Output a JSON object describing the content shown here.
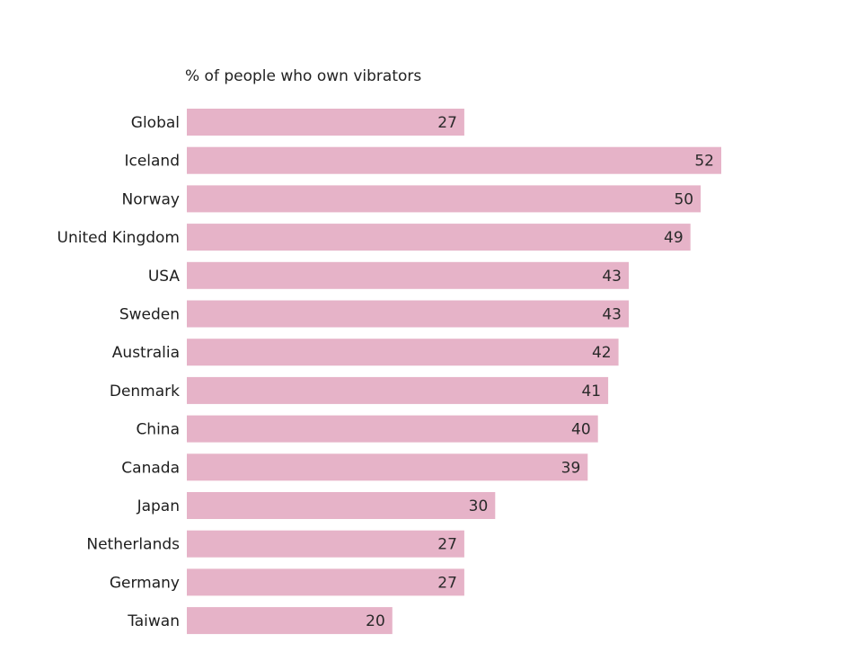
{
  "chart_data": {
    "type": "bar",
    "orientation": "horizontal",
    "title": "% of people who own vibrators",
    "xlabel": "",
    "ylabel": "",
    "categories": [
      "Global",
      "Iceland",
      "Norway",
      "United Kingdom",
      "USA",
      "Sweden",
      "Australia",
      "Denmark",
      "China",
      "Canada",
      "Japan",
      "Netherlands",
      "Germany",
      "Taiwan"
    ],
    "values": [
      27,
      52,
      50,
      49,
      43,
      43,
      42,
      41,
      40,
      39,
      30,
      27,
      27,
      20
    ],
    "value_labels": [
      "27",
      "52",
      "50",
      "49",
      "43",
      "43",
      "42",
      "41",
      "40",
      "39",
      "30",
      "27",
      "27",
      "20"
    ],
    "xlim": [
      0,
      52
    ],
    "grid": false,
    "legend": "none",
    "bar_color": "#e6b3c8"
  }
}
